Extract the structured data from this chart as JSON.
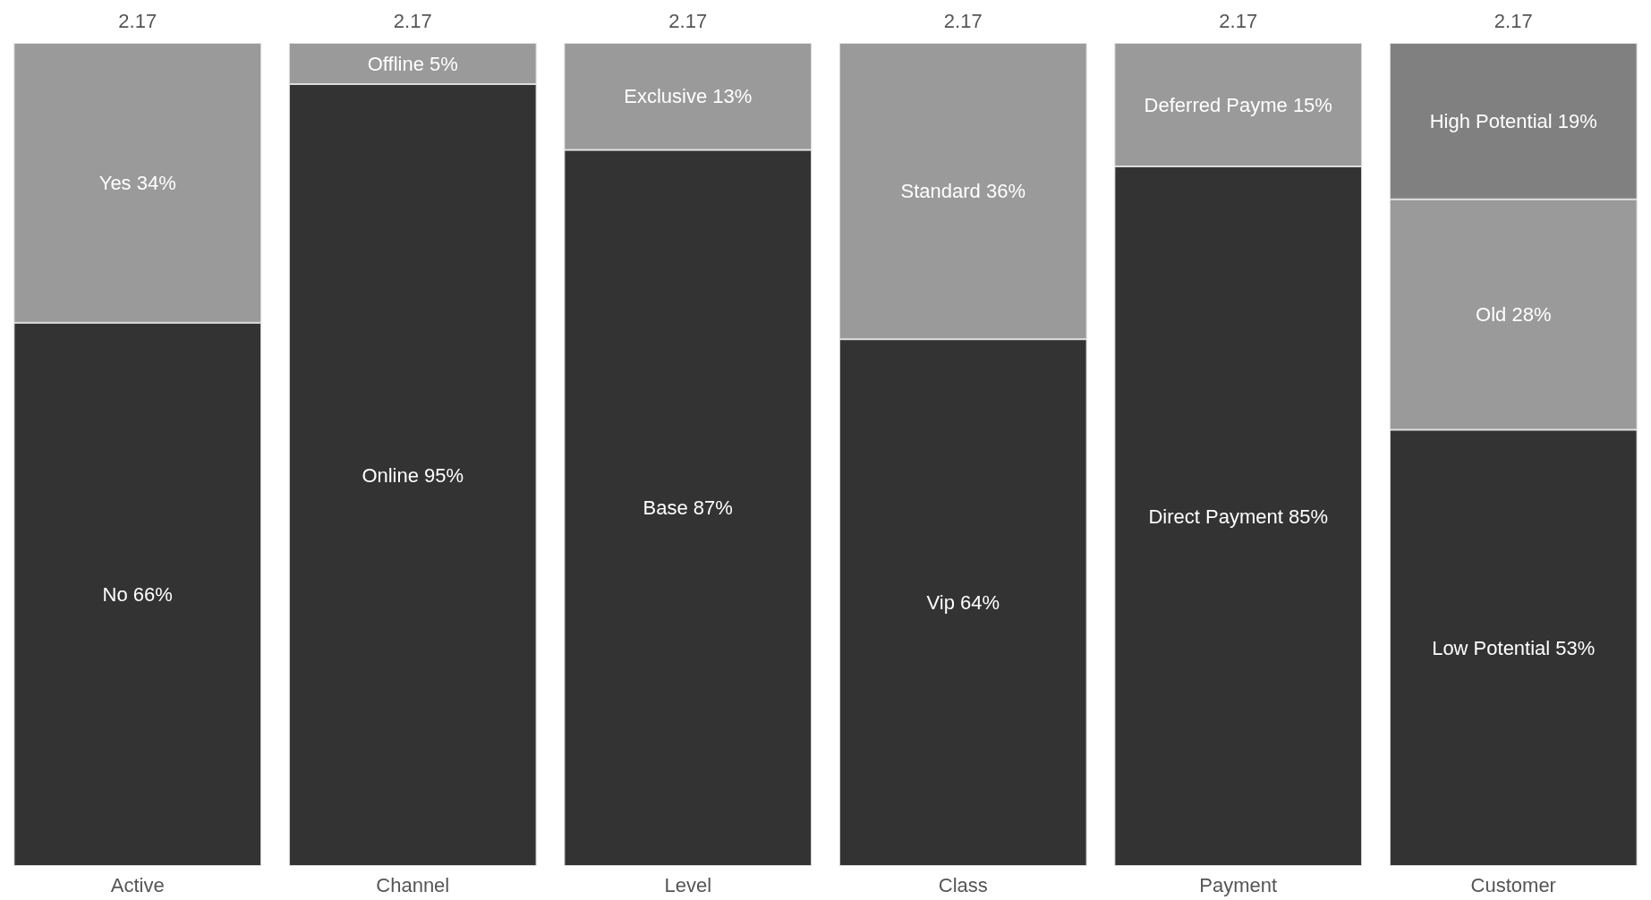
{
  "chart_data": {
    "type": "bar",
    "stacked": true,
    "categories": [
      "Active",
      "Channel",
      "Level",
      "Class",
      "Payment",
      "Customer"
    ],
    "series": [
      {
        "color": "#333333",
        "values": [
          66,
          95,
          87,
          64,
          85,
          53
        ],
        "value_labels": [
          "No 66%",
          "Online 95%",
          "Base 87%",
          "Vip 64%",
          "Direct Payment 85%",
          "Low Potential 53%"
        ]
      },
      {
        "color": "#999a99",
        "values": [
          34,
          5,
          13,
          36,
          15,
          28
        ],
        "value_labels": [
          "Yes 34%",
          "Offline 5%",
          "Exclusive 13%",
          "Standard 36%",
          "Deferred Payme 15%",
          "Old 28%"
        ]
      },
      {
        "color": "#808080",
        "values": [
          null,
          null,
          null,
          null,
          null,
          19
        ],
        "value_labels": [
          null,
          null,
          null,
          null,
          null,
          "High Potential 19%"
        ]
      }
    ],
    "ylim": [
      0,
      100
    ],
    "tick_labels": "x",
    "annotations": [
      "2.17",
      "2.17",
      "2.17",
      "2.17",
      "2.17",
      "2.17"
    ]
  }
}
